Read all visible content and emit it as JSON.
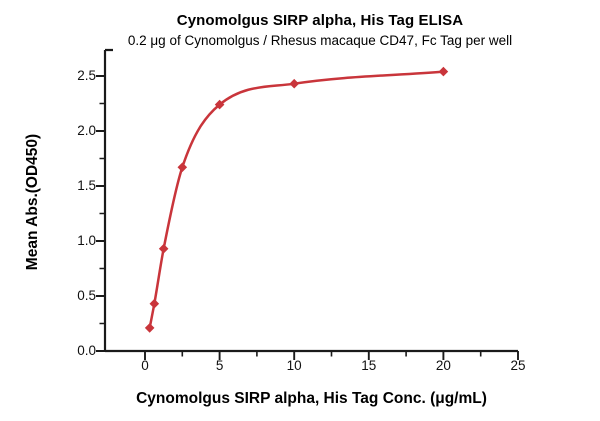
{
  "header": {
    "title": "Cynomolgus SIRP alpha, His Tag ELISA",
    "subtitle": "0.2 μg of Cynomolgus / Rhesus macaque CD47, Fc Tag per well"
  },
  "chart_data": {
    "type": "scatter",
    "title": "Cynomolgus SIRP alpha, His Tag ELISA",
    "subtitle": "0.2 μg of Cynomolgus / Rhesus macaque CD47, Fc Tag per well",
    "xlabel": "Cynomolgus SIRP alpha, His Tag Conc. (μg/mL)",
    "ylabel": "Mean Abs.(OD450)",
    "x": [
      0.3125,
      0.625,
      1.25,
      2.5,
      5,
      10,
      20
    ],
    "y": [
      0.21,
      0.43,
      0.93,
      1.67,
      2.24,
      2.43,
      2.54
    ],
    "marker": "diamond",
    "curve": "smooth-fit",
    "line_color": "#C9353B",
    "marker_color": "#C9353B",
    "axis_color": "#1a1a1a",
    "xlim": [
      0,
      25
    ],
    "ylim": [
      0,
      2.5
    ],
    "xticks": [
      0,
      5,
      10,
      15,
      20,
      25
    ],
    "yticks": [
      0,
      0.5,
      1,
      1.5,
      2,
      2.5
    ],
    "xtick_labels": [
      "0",
      "5",
      "10",
      "15",
      "20",
      "25"
    ],
    "ytick_labels": [
      "0.0",
      "0.5",
      "1.0",
      "1.5",
      "2.0",
      "2.5"
    ],
    "x_minor_ticks": [
      2.5,
      7.5,
      12.5,
      17.5,
      22.5
    ],
    "y_minor_ticks": [
      0.25,
      0.75,
      1.25,
      1.75,
      2.25
    ],
    "grid": false,
    "legend": "none"
  }
}
